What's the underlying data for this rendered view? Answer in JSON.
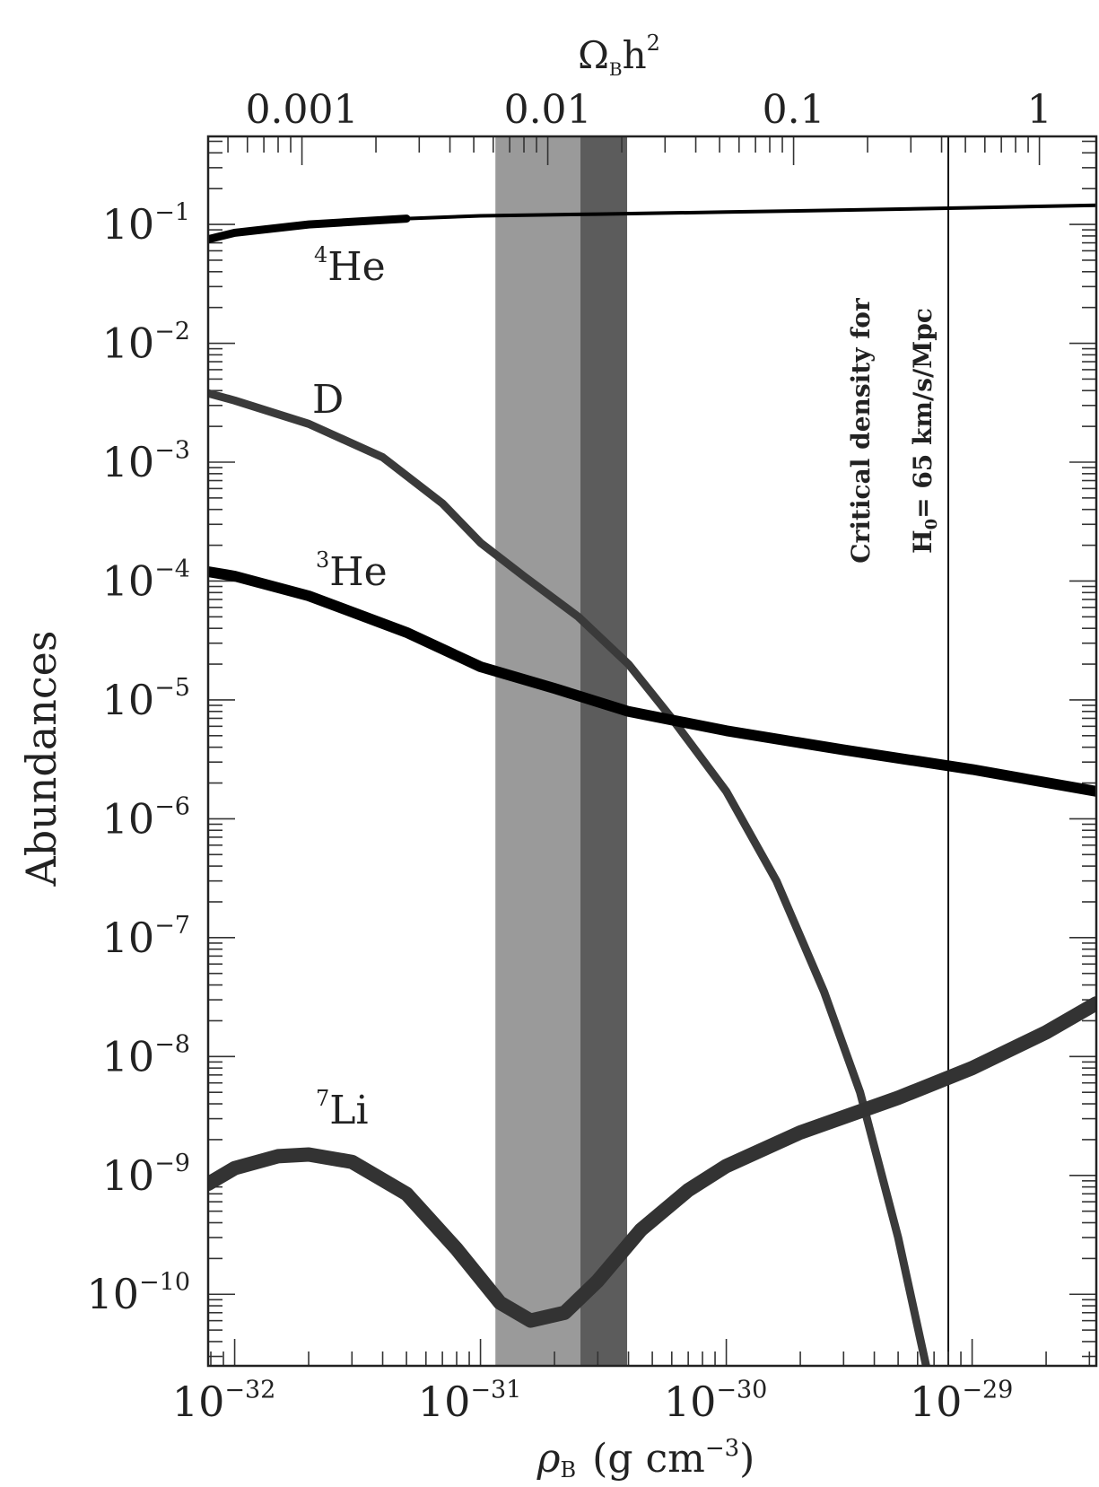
{
  "chart_data": {
    "type": "line",
    "ylabel": "Abundances",
    "xlabel_rho": "ρ",
    "xlabel_rho_sub": "B",
    "xlabel_units_pre": "(g  cm",
    "xlabel_units_exp": "−3",
    "xlabel_units_post": ")",
    "top_xlabel_omega": "Ω",
    "top_xlabel_omega_sub": "B",
    "top_xlabel_h": "h",
    "top_xlabel_exp": "2",
    "x_scale": "log",
    "y_scale": "log",
    "xlim": [
      7.8e-33,
      3.2e-29
    ],
    "ylim": [
      2.5e-11,
      0.55
    ],
    "x_ticks": [
      {
        "value": 1e-32,
        "base": "10",
        "exp": "−32"
      },
      {
        "value": 1e-31,
        "base": "10",
        "exp": "−31"
      },
      {
        "value": 1e-30,
        "base": "10",
        "exp": "−30"
      },
      {
        "value": 1e-29,
        "base": "10",
        "exp": "−29"
      }
    ],
    "top_ticks": [
      {
        "value": 0.001,
        "label": "0.001"
      },
      {
        "value": 0.01,
        "label": "0.01"
      },
      {
        "value": 0.1,
        "label": "0.1"
      },
      {
        "value": 1,
        "label": "1"
      }
    ],
    "y_ticks": [
      {
        "value": 0.1,
        "base": "10",
        "exp": "−1"
      },
      {
        "value": 0.01,
        "base": "10",
        "exp": "−2"
      },
      {
        "value": 0.001,
        "base": "10",
        "exp": "−3"
      },
      {
        "value": 0.0001,
        "base": "10",
        "exp": "−4"
      },
      {
        "value": 1e-05,
        "base": "10",
        "exp": "−5"
      },
      {
        "value": 1e-06,
        "base": "10",
        "exp": "−6"
      },
      {
        "value": 1e-07,
        "base": "10",
        "exp": "−7"
      },
      {
        "value": 1e-08,
        "base": "10",
        "exp": "−8"
      },
      {
        "value": 1e-09,
        "base": "10",
        "exp": "−9"
      },
      {
        "value": 1e-10,
        "base": "10",
        "exp": "−10"
      }
    ],
    "bands": [
      {
        "name": "light-band",
        "x": [
          1.15e-31,
          2.55e-31
        ],
        "color": "#9a9a9a"
      },
      {
        "name": "dark-band",
        "x": [
          2.55e-31,
          3.95e-31
        ],
        "color": "#5c5c5c"
      }
    ],
    "critical_line": {
      "x": 8e-30,
      "text_line1": "Critical density for",
      "text_line2_pre": "H",
      "text_line2_sub": "0",
      "text_line2_post": "= 65  km/s/Mpc"
    },
    "series": [
      {
        "name": "He",
        "mass": "4",
        "color": "#000000",
        "x": [
          7.8e-33,
          1e-32,
          2e-32,
          5e-32,
          1e-31,
          3e-31,
          1e-30,
          3e-30,
          1e-29,
          3.2e-29
        ],
        "y": [
          0.075,
          0.085,
          0.1,
          0.112,
          0.118,
          0.122,
          0.127,
          0.132,
          0.138,
          0.145
        ]
      },
      {
        "name": "D",
        "color": "#3a3a3a",
        "x": [
          7.8e-33,
          1e-32,
          2e-32,
          4e-32,
          7e-32,
          1e-31,
          1.5e-31,
          2.5e-31,
          4e-31,
          6e-31,
          1e-30,
          1.6e-30,
          2.5e-30,
          3.5e-30,
          5e-30,
          6.5e-30,
          8e-30
        ],
        "y": [
          0.0038,
          0.0033,
          0.0021,
          0.0011,
          0.00045,
          0.00021,
          0.00011,
          5e-05,
          2e-05,
          7e-06,
          1.7e-06,
          3e-07,
          3.5e-08,
          5e-09,
          3e-10,
          2.5e-11,
          2e-12
        ]
      },
      {
        "name": "He",
        "mass": "3",
        "color": "#000000",
        "x": [
          7.8e-33,
          1e-32,
          2e-32,
          5e-32,
          1e-31,
          2e-31,
          4e-31,
          1e-30,
          3e-30,
          1e-29,
          3.2e-29
        ],
        "y": [
          0.00012,
          0.00011,
          7.5e-05,
          3.7e-05,
          1.9e-05,
          1.25e-05,
          8e-06,
          5.5e-06,
          3.8e-06,
          2.6e-06,
          1.7e-06
        ]
      },
      {
        "name": "Li",
        "mass": "7",
        "color": "#333333",
        "x": [
          7.8e-33,
          1e-32,
          1.5e-32,
          2e-32,
          3e-32,
          5e-32,
          8e-32,
          1.2e-31,
          1.6e-31,
          2.2e-31,
          3e-31,
          4.5e-31,
          7e-31,
          1e-30,
          2e-30,
          5e-30,
          1e-29,
          2e-29,
          3.2e-29
        ],
        "y": [
          8.5e-10,
          1.15e-09,
          1.45e-09,
          1.5e-09,
          1.3e-09,
          7e-10,
          2.4e-10,
          8.5e-11,
          6e-11,
          7e-11,
          1.3e-10,
          3.5e-10,
          7.5e-10,
          1.2e-09,
          2.3e-09,
          4.5e-09,
          8e-09,
          1.6e-08,
          2.8e-08
        ]
      }
    ]
  }
}
